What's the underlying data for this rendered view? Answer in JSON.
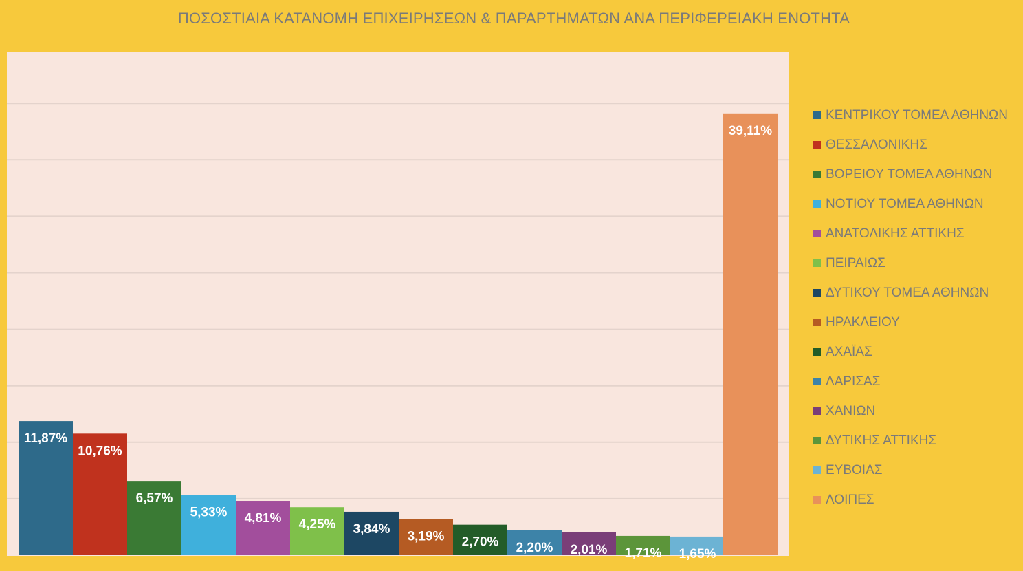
{
  "chart_data": {
    "type": "bar",
    "title": "ΠΟΣΟΣΤΙΑΙΑ ΚΑΤΑΝΟΜΗ ΕΠΙΧΕΙΡΗΣΕΩΝ & ΠΑΡΑΡΤΗΜΑΤΩΝ ΑΝΑ ΠΕΡΙΦΕΡΕΙΑΚΗ ΕΝΟΤΗΤΑ",
    "xlabel": "",
    "ylabel": "",
    "ylim": [
      0,
      45
    ],
    "grid": true,
    "legend_position": "right",
    "categories": [
      "ΚΕΝΤΡΙΚΟΥ ΤΟΜΕΑ ΑΘΗΝΩΝ",
      "ΘΕΣΣΑΛΟΝΙΚΗΣ",
      "ΒΟΡΕΙΟΥ ΤΟΜΕΑ ΑΘΗΝΩΝ",
      "ΝΟΤΙΟΥ ΤΟΜΕΑ ΑΘΗΝΩΝ",
      "ΑΝΑΤΟΛΙΚΗΣ ΑΤΤΙΚΗΣ",
      "ΠΕΙΡΑΙΩΣ",
      "ΔΥΤΙΚΟΥ ΤΟΜΕΑ ΑΘΗΝΩΝ",
      "ΗΡΑΚΛΕΙΟΥ",
      "ΑΧΑΪΑΣ",
      "ΛΑΡΙΣΑΣ",
      "ΧΑΝΙΩΝ",
      "ΔΥΤΙΚΗΣ ΑΤΤΙΚΗΣ",
      "ΕΥΒΟΙΑΣ",
      "ΛΟΙΠΕΣ"
    ],
    "values": [
      11.87,
      10.76,
      6.57,
      5.33,
      4.81,
      4.25,
      3.84,
      3.19,
      2.7,
      2.2,
      2.01,
      1.71,
      1.65,
      39.11
    ],
    "data_labels": [
      "11,87%",
      "10,76%",
      "6,57%",
      "5,33%",
      "4,81%",
      "4,25%",
      "3,84%",
      "3,19%",
      "2,70%",
      "2,20%",
      "2,01%",
      "1,71%",
      "1,65%",
      "39,11%"
    ],
    "colors": [
      "#2e6a8a",
      "#c0321e",
      "#3a7a34",
      "#3fb0dc",
      "#a24e9c",
      "#7fc04a",
      "#1d4763",
      "#b55b23",
      "#235c28",
      "#3d83a8",
      "#7a3e78",
      "#5c953a",
      "#6cb3d4",
      "#e8915a"
    ]
  },
  "colors": {
    "background": "#f7c93c",
    "plot_area": "#f9e6de",
    "gridline": "#e4d3cc",
    "title_text": "#7a7a7a",
    "legend_text": "#7a7a7a",
    "label_text": "#ffffff"
  }
}
